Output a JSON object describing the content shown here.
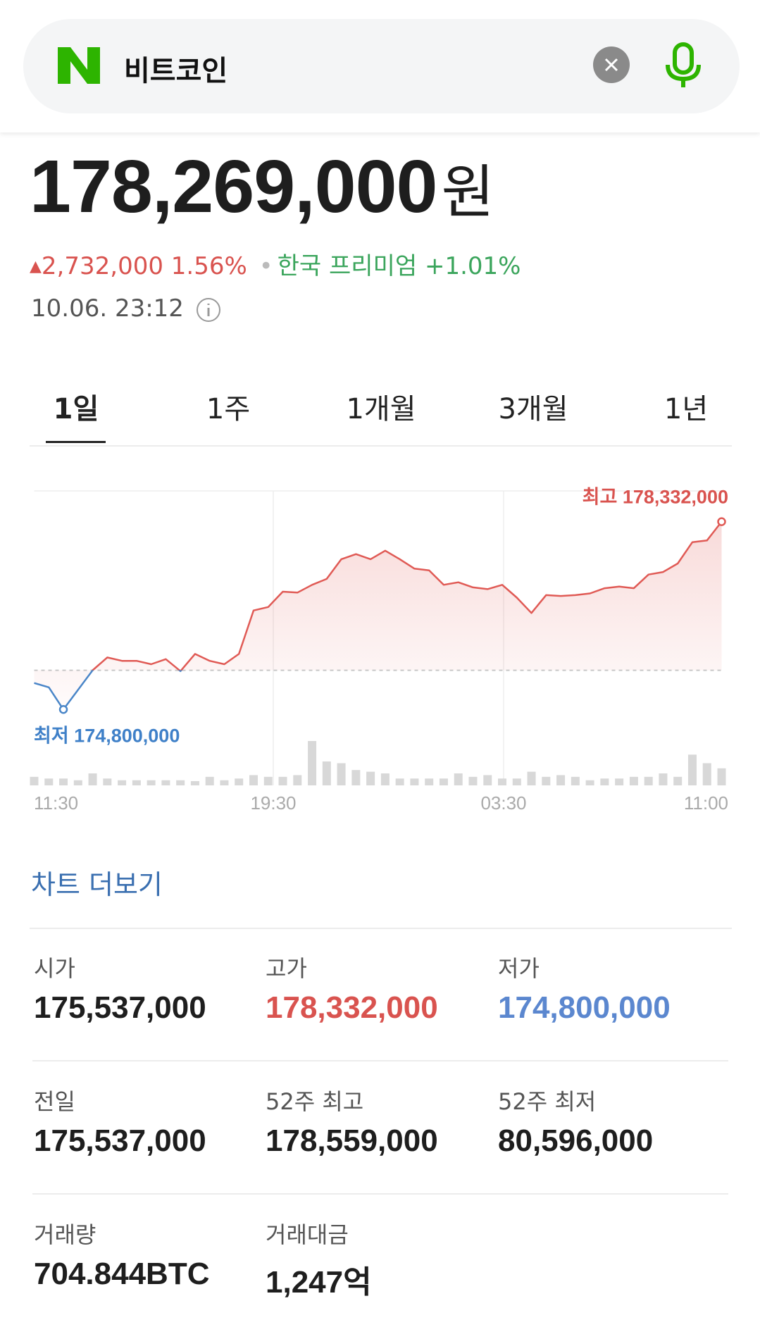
{
  "search": {
    "query": "비트코인"
  },
  "quote": {
    "price": "178,269,000",
    "currency": "원",
    "change": "2,732,000 1.56%",
    "premium": "한국 프리미엄 +1.01%",
    "time": "10.06. 23:12"
  },
  "tabs": [
    "1일",
    "1주",
    "1개월",
    "3개월",
    "1년"
  ],
  "chart_data": {
    "type": "line",
    "color": "#e05a55",
    "low_color": "#4a86c8",
    "x_labels": [
      "11:30",
      "19:30",
      "03:30",
      "11:00"
    ],
    "values": [
      175298000,
      175217000,
      174800000,
      175169000,
      175539000,
      175779000,
      175715000,
      175715000,
      175651000,
      175747000,
      175522000,
      175844000,
      175715000,
      175651000,
      175844000,
      176662000,
      176727000,
      177016000,
      176999000,
      177144000,
      177256000,
      177626000,
      177722000,
      177626000,
      177786000,
      177626000,
      177449000,
      177417000,
      177144000,
      177192000,
      177096000,
      177064000,
      177144000,
      176903000,
      176614000,
      176951000,
      176935000,
      176951000,
      176983000,
      177080000,
      177112000,
      177080000,
      177337000,
      177385000,
      177545000,
      177947000,
      177979000,
      178332000
    ],
    "volume": [
      10,
      8,
      8,
      6,
      14,
      8,
      6,
      6,
      6,
      6,
      6,
      5,
      10,
      6,
      8,
      12,
      10,
      10,
      12,
      52,
      28,
      26,
      18,
      16,
      14,
      8,
      8,
      8,
      8,
      14,
      10,
      12,
      8,
      8,
      16,
      10,
      12,
      10,
      6,
      8,
      8,
      10,
      10,
      14,
      10,
      36,
      26,
      20
    ],
    "volume_max": 60,
    "ylim": [
      174300000,
      178910000
    ],
    "baseline": 175537000,
    "high_label": "최고 178,332,000",
    "low_label": "최저 174,800,000"
  },
  "more_link": "차트 더보기",
  "stats": [
    [
      {
        "label": "시가",
        "value": "175,537,000"
      },
      {
        "label": "고가",
        "value": "178,332,000"
      },
      {
        "label": "저가",
        "value": "174,800,000"
      }
    ],
    [
      {
        "label": "전일",
        "value": "175,537,000"
      },
      {
        "label": "52주 최고",
        "value": "178,559,000"
      },
      {
        "label": "52주 최저",
        "value": "80,596,000"
      }
    ],
    [
      {
        "label": "거래량",
        "value": "704.844BTC"
      },
      {
        "label": "거래대금",
        "value": "1,247억"
      }
    ]
  ]
}
